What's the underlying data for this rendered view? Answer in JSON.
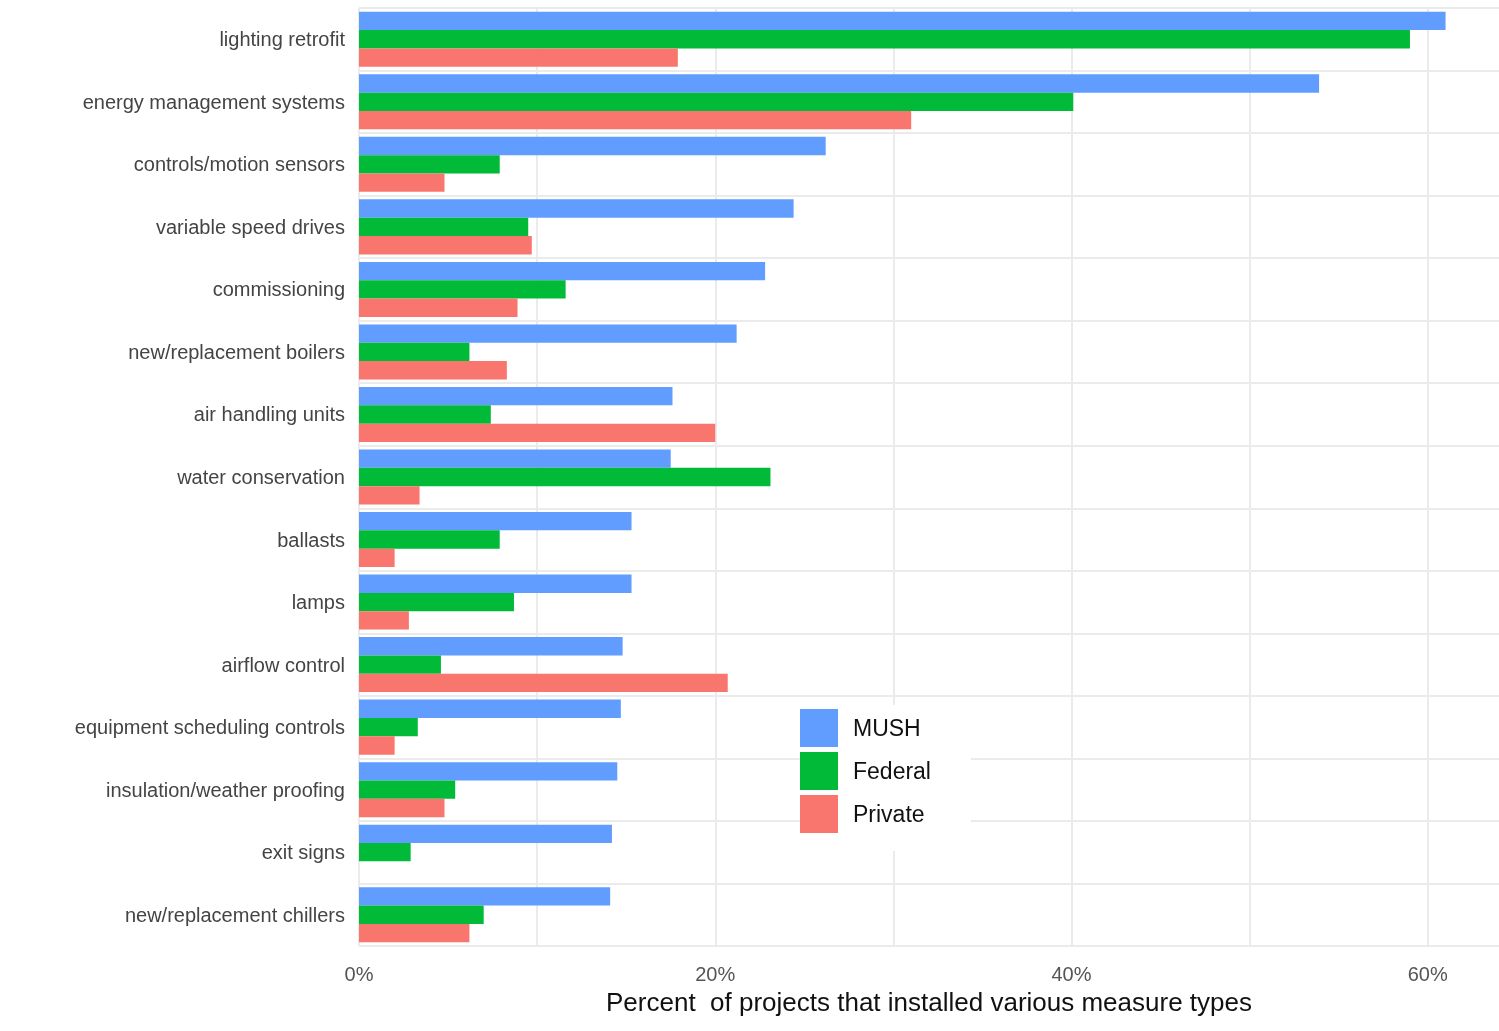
{
  "chart_data": {
    "type": "bar",
    "orientation": "horizontal",
    "xlabel": "Percent  of projects that installed various measure types",
    "categories": [
      "lighting retrofit",
      "energy management systems",
      "controls/motion sensors",
      "variable speed drives",
      "commissioning",
      "new/replacement boilers",
      "air handling units",
      "water conservation",
      "ballasts",
      "lamps",
      "airflow control",
      "equipment scheduling controls",
      "insulation/weather proofing",
      "exit signs",
      "new/replacement chillers"
    ],
    "series": [
      {
        "name": "MUSH",
        "color": "#619cff",
        "values": [
          61.0,
          53.9,
          26.2,
          24.4,
          22.8,
          21.2,
          17.6,
          17.5,
          15.3,
          15.3,
          14.8,
          14.7,
          14.5,
          14.2,
          14.1
        ]
      },
      {
        "name": "Federal",
        "color": "#00ba38",
        "values": [
          59.0,
          40.1,
          7.9,
          9.5,
          11.6,
          6.2,
          7.4,
          23.1,
          7.9,
          8.7,
          4.6,
          3.3,
          5.4,
          2.9,
          7.0
        ]
      },
      {
        "name": "Private",
        "color": "#f8766d",
        "values": [
          17.9,
          31.0,
          4.8,
          9.7,
          8.9,
          8.3,
          20.0,
          3.4,
          2.0,
          2.8,
          20.7,
          2.0,
          4.8,
          null,
          6.2
        ]
      }
    ],
    "xlim": [
      0,
      64
    ],
    "xticks": [
      {
        "value": 0,
        "label": "0%"
      },
      {
        "value": 10,
        "label": null
      },
      {
        "value": 20,
        "label": "20%"
      },
      {
        "value": 30,
        "label": null
      },
      {
        "value": 40,
        "label": "40%"
      },
      {
        "value": 50,
        "label": null
      },
      {
        "value": 60,
        "label": "60%"
      }
    ],
    "grid": true,
    "legend": "bottom"
  }
}
